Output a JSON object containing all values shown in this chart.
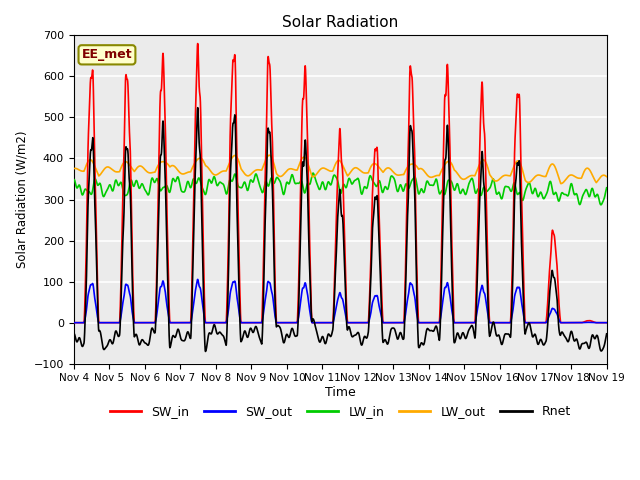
{
  "title": "Solar Radiation",
  "ylabel": "Solar Radiation (W/m2)",
  "xlabel": "Time",
  "ylim": [
    -100,
    700
  ],
  "xlim": [
    0,
    15
  ],
  "annotation": "EE_met",
  "bg_color": "#ebebeb",
  "grid_color": "white",
  "series": {
    "SW_in": {
      "color": "#ff0000",
      "lw": 1.2
    },
    "SW_out": {
      "color": "#0000ff",
      "lw": 1.2
    },
    "LW_in": {
      "color": "#00cc00",
      "lw": 1.2
    },
    "LW_out": {
      "color": "#ffaa00",
      "lw": 1.2
    },
    "Rnet": {
      "color": "#000000",
      "lw": 1.2
    }
  },
  "xtick_labels": [
    "Nov 4",
    "Nov 5",
    "Nov 6",
    "Nov 7",
    "Nov 8",
    "Nov 9",
    "Nov 10",
    "Nov 11",
    "Nov 12",
    "Nov 13",
    "Nov 14",
    "Nov 15",
    "Nov 16",
    "Nov 17",
    "Nov 18",
    "Nov 19"
  ],
  "xtick_positions": [
    0,
    1,
    2,
    3,
    4,
    5,
    6,
    7,
    8,
    9,
    10,
    11,
    12,
    13,
    14,
    15
  ],
  "legend_entries": [
    {
      "label": "SW_in",
      "color": "#ff0000"
    },
    {
      "label": "SW_out",
      "color": "#0000ff"
    },
    {
      "label": "LW_in",
      "color": "#00cc00"
    },
    {
      "label": "LW_out",
      "color": "#ffaa00"
    },
    {
      "label": "Rnet",
      "color": "#000000"
    }
  ]
}
